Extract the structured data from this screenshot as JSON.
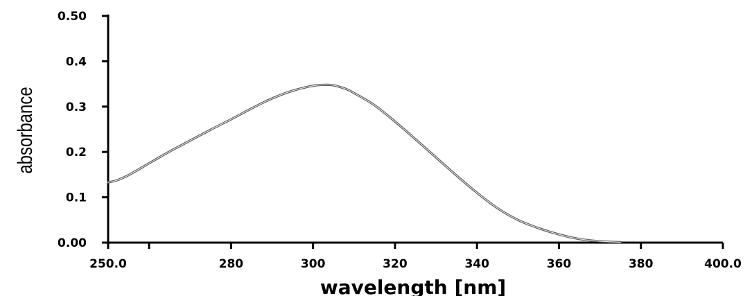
{
  "chart_data": {
    "type": "line",
    "title": "",
    "xlabel": "wavelength [nm]",
    "ylabel": "absorbance",
    "xlim": [
      250,
      400
    ],
    "ylim": [
      0,
      0.5
    ],
    "x_ticks": [
      250,
      260,
      280,
      300,
      320,
      340,
      360,
      380,
      400
    ],
    "x_tick_labels": [
      "250.0",
      "",
      "280",
      "300",
      "320",
      "340",
      "360",
      "380",
      "400.0"
    ],
    "y_ticks": [
      0,
      0.1,
      0.2,
      0.3,
      0.4,
      0.5
    ],
    "y_tick_labels": [
      "0.00",
      "0.1",
      "0.2",
      "0.3",
      "0.4",
      "0.50"
    ],
    "grid": false,
    "legend": "none",
    "series": [
      {
        "color": "#555555",
        "x": [
          250,
          252,
          255,
          260,
          265,
          270,
          275,
          280,
          285,
          290,
          295,
          300,
          303,
          305,
          308,
          310,
          315,
          320,
          325,
          330,
          335,
          340,
          345,
          350,
          355,
          360,
          365,
          370,
          375
        ],
        "y": [
          0.133,
          0.137,
          0.149,
          0.175,
          0.201,
          0.225,
          0.249,
          0.272,
          0.296,
          0.318,
          0.335,
          0.346,
          0.348,
          0.347,
          0.339,
          0.33,
          0.303,
          0.267,
          0.228,
          0.188,
          0.148,
          0.11,
          0.076,
          0.05,
          0.032,
          0.018,
          0.008,
          0.003,
          0.001
        ]
      }
    ]
  }
}
